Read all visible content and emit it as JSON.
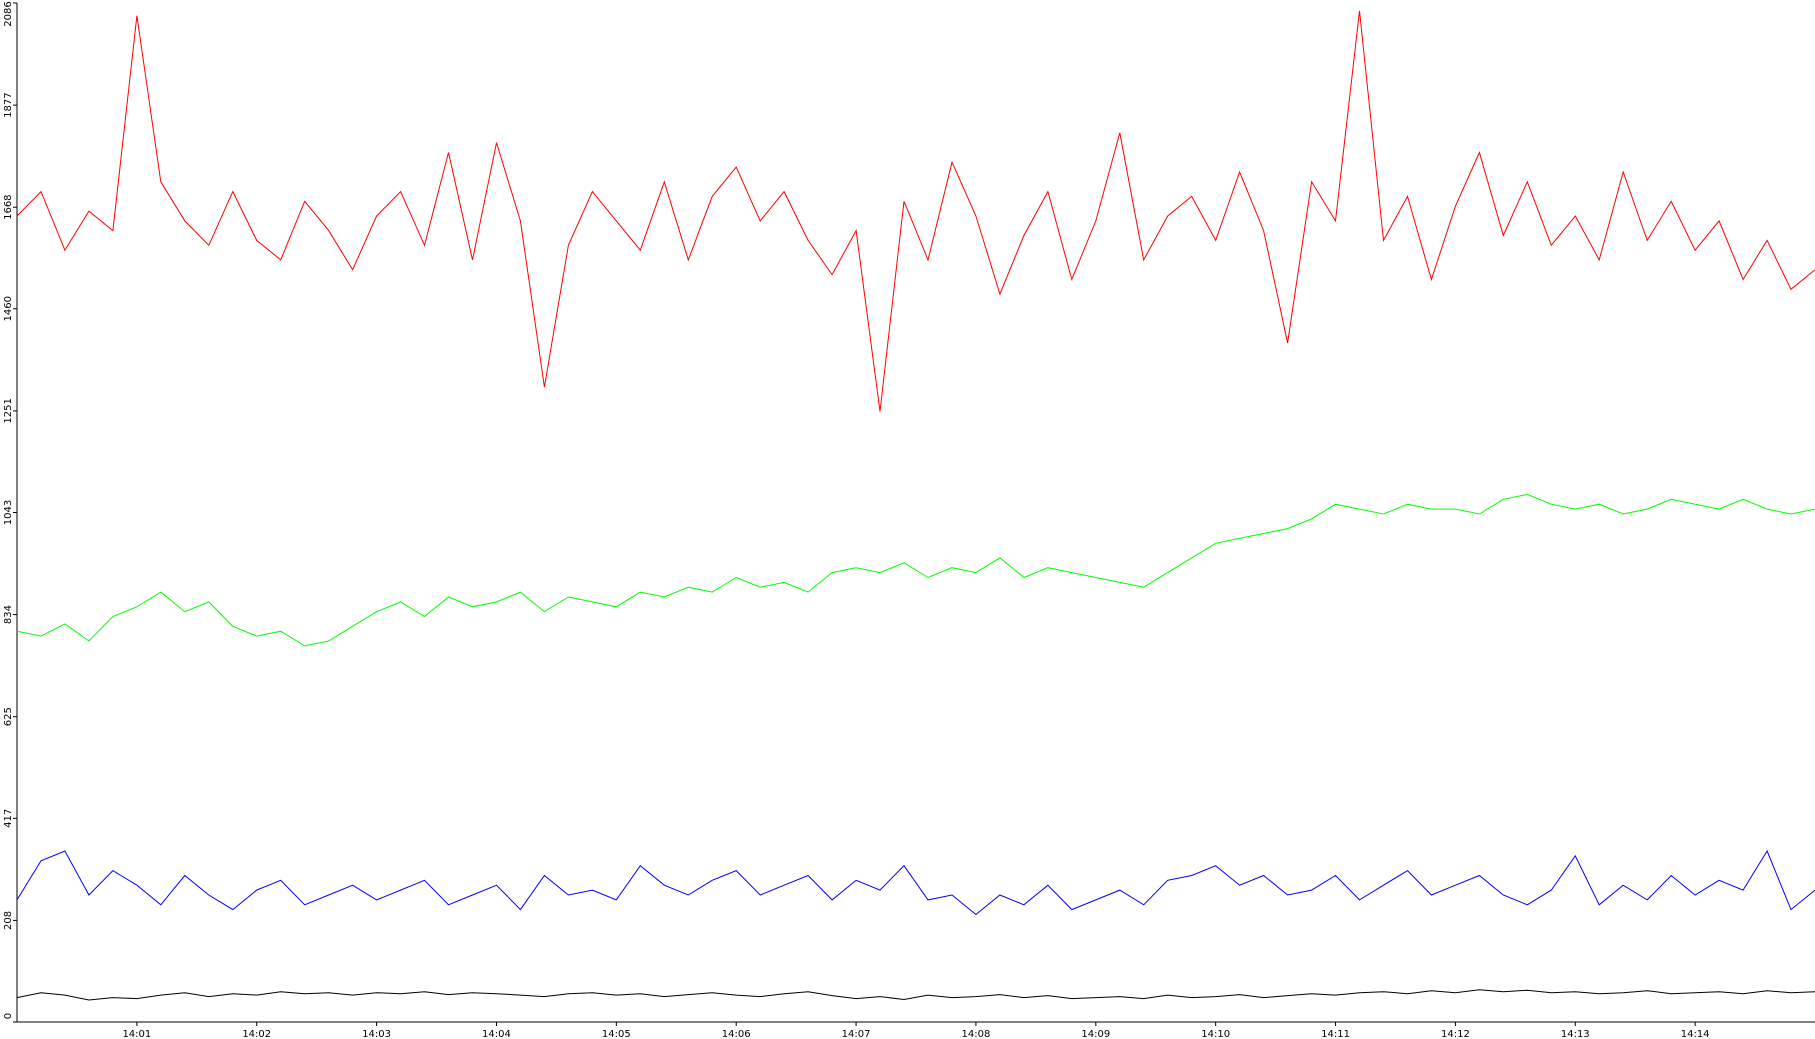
{
  "chart_data": {
    "type": "line",
    "x": [
      0,
      0.2,
      0.4,
      0.6,
      0.8,
      1,
      1.2,
      1.4,
      1.6,
      1.8,
      2,
      2.2,
      2.4,
      2.6,
      2.8,
      3,
      3.2,
      3.4,
      3.6,
      3.8,
      4,
      4.2,
      4.4,
      4.6,
      4.8,
      5,
      5.2,
      5.4,
      5.6,
      5.8,
      6,
      6.2,
      6.4,
      6.6,
      6.8,
      7,
      7.2,
      7.4,
      7.6,
      7.8,
      8,
      8.2,
      8.4,
      8.6,
      8.8,
      9,
      9.2,
      9.4,
      9.6,
      9.8,
      10,
      10.2,
      10.4,
      10.6,
      10.8,
      11,
      11.2,
      11.4,
      11.6,
      11.8,
      12,
      12.2,
      12.4,
      12.6,
      12.8,
      13,
      13.2,
      13.4,
      13.6,
      13.8,
      14,
      14.2,
      14.4,
      14.6,
      14.8,
      15
    ],
    "series": [
      {
        "color": "#ff0000",
        "values": [
          1650,
          1700,
          1580,
          1660,
          1620,
          2060,
          1720,
          1640,
          1590,
          1700,
          1600,
          1560,
          1680,
          1620,
          1540,
          1650,
          1700,
          1590,
          1780,
          1560,
          1800,
          1640,
          1300,
          1590,
          1700,
          1640,
          1580,
          1720,
          1560,
          1690,
          1750,
          1640,
          1700,
          1600,
          1530,
          1620,
          1250,
          1680,
          1560,
          1760,
          1650,
          1490,
          1610,
          1700,
          1520,
          1640,
          1820,
          1560,
          1650,
          1690,
          1600,
          1740,
          1620,
          1390,
          1720,
          1640,
          2070,
          1600,
          1690,
          1520,
          1670,
          1780,
          1610,
          1720,
          1590,
          1650,
          1560,
          1740,
          1600,
          1680,
          1580,
          1640,
          1520,
          1600,
          1500,
          1540
        ]
      },
      {
        "color": "#00ff00",
        "values": [
          800,
          790,
          815,
          780,
          830,
          850,
          880,
          840,
          860,
          810,
          790,
          800,
          770,
          780,
          810,
          840,
          860,
          830,
          870,
          850,
          860,
          880,
          840,
          870,
          860,
          850,
          880,
          870,
          890,
          880,
          910,
          890,
          900,
          880,
          920,
          930,
          920,
          940,
          910,
          930,
          920,
          950,
          910,
          930,
          920,
          910,
          900,
          890,
          920,
          950,
          980,
          990,
          1000,
          1010,
          1030,
          1060,
          1050,
          1040,
          1060,
          1050,
          1050,
          1040,
          1070,
          1080,
          1060,
          1050,
          1060,
          1040,
          1050,
          1070,
          1060,
          1050,
          1070,
          1050,
          1040,
          1050
        ]
      },
      {
        "color": "#0000ff",
        "values": [
          250,
          330,
          350,
          260,
          310,
          280,
          240,
          300,
          260,
          230,
          270,
          290,
          240,
          260,
          280,
          250,
          270,
          290,
          240,
          260,
          280,
          230,
          300,
          260,
          270,
          250,
          320,
          280,
          260,
          290,
          310,
          260,
          280,
          300,
          250,
          290,
          270,
          320,
          250,
          260,
          220,
          260,
          240,
          280,
          230,
          250,
          270,
          240,
          290,
          300,
          320,
          280,
          300,
          260,
          270,
          300,
          250,
          280,
          310,
          260,
          280,
          300,
          260,
          240,
          270,
          340,
          240,
          280,
          250,
          300,
          260,
          290,
          270,
          350,
          230,
          270
        ]
      },
      {
        "color": "#000000",
        "values": [
          50,
          60,
          55,
          45,
          50,
          48,
          55,
          60,
          52,
          58,
          55,
          62,
          58,
          60,
          55,
          60,
          58,
          62,
          56,
          60,
          58,
          55,
          52,
          58,
          60,
          55,
          58,
          52,
          56,
          60,
          55,
          52,
          58,
          62,
          54,
          48,
          52,
          46,
          55,
          50,
          52,
          56,
          50,
          54,
          48,
          50,
          52,
          48,
          55,
          50,
          52,
          56,
          50,
          54,
          58,
          55,
          60,
          62,
          58,
          64,
          60,
          66,
          62,
          65,
          60,
          62,
          58,
          60,
          64,
          58,
          60,
          62,
          58,
          64,
          60,
          62
        ]
      }
    ],
    "xlim": [
      0,
      15
    ],
    "xticks": [
      {
        "value": 1,
        "label": "14:01"
      },
      {
        "value": 2,
        "label": "14:02"
      },
      {
        "value": 3,
        "label": "14:03"
      },
      {
        "value": 4,
        "label": "14:04"
      },
      {
        "value": 5,
        "label": "14:05"
      },
      {
        "value": 6,
        "label": "14:06"
      },
      {
        "value": 7,
        "label": "14:07"
      },
      {
        "value": 8,
        "label": "14:08"
      },
      {
        "value": 9,
        "label": "14:09"
      },
      {
        "value": 10,
        "label": "14:10"
      },
      {
        "value": 11,
        "label": "14:11"
      },
      {
        "value": 12,
        "label": "14:12"
      },
      {
        "value": 13,
        "label": "14:13"
      },
      {
        "value": 14,
        "label": "14:14"
      }
    ],
    "ylim": [
      0,
      2086
    ],
    "yticks": [
      0,
      208,
      417,
      625,
      834,
      1043,
      1251,
      1460,
      1668,
      1877,
      2086
    ]
  }
}
